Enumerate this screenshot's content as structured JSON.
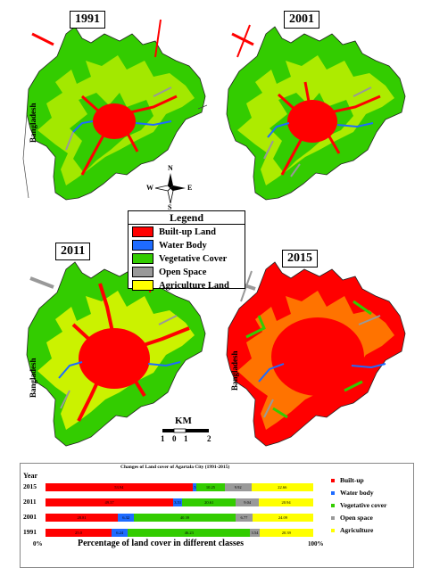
{
  "maps": [
    {
      "year": "1991",
      "country_label": "Bangladesh"
    },
    {
      "year": "2001"
    },
    {
      "year": "2011",
      "country_label": "Bangladesh"
    },
    {
      "year": "2015",
      "country_label": "Bangladesh"
    }
  ],
  "legend": {
    "title": "Legend",
    "items": [
      {
        "label": "Built-up Land",
        "color": "#ff0000"
      },
      {
        "label": "Water Body",
        "color": "#1e6bff"
      },
      {
        "label": "Vegetative Cover",
        "color": "#33cc00"
      },
      {
        "label": "Open Space",
        "color": "#999999"
      },
      {
        "label": "Agriculture Land",
        "color": "#ffff00"
      }
    ]
  },
  "compass": {
    "n": "N",
    "s": "S",
    "e": "E",
    "w": "W"
  },
  "scale_bar": {
    "unit": "KM",
    "ticks": [
      "1",
      "0",
      "1",
      "2"
    ]
  },
  "chart_data": {
    "type": "bar",
    "title": "Changes of Land cover of Agartala City (1991-2015)",
    "year_header": "Year",
    "xlabel": "Percentage of land cover in different classes",
    "x_min_label": "0%",
    "x_max_label": "100%",
    "categories": [
      "2015",
      "2011",
      "2001",
      "1991"
    ],
    "series": [
      {
        "name": "Built-up",
        "color": "#ff0000",
        "values": [
          53.94,
          49.37,
          28.81,
          25.0
        ],
        "labels": [
          "53.94",
          "49.37",
          "28.81",
          "25.0"
        ]
      },
      {
        "name": "Water body",
        "color": "#1e6bff",
        "values": [
          1.51,
          3.51,
          6.32,
          6.24
        ],
        "labels": [
          "1.51",
          "3.51",
          "6.32",
          "6.24"
        ]
      },
      {
        "name": "Vegetative cover",
        "color": "#33cc00",
        "values": [
          10.25,
          20.61,
          40.39,
          46.23
        ],
        "labels": [
          "10.25",
          "20.61",
          "40.39",
          "46.23"
        ]
      },
      {
        "name": "Open space",
        "color": "#999999",
        "values": [
          9.92,
          9.04,
          6.77,
          3.54
        ],
        "labels": [
          "9.92",
          "9.04",
          "6.77",
          "3.54"
        ]
      },
      {
        "name": "Agriculture",
        "color": "#ffff00",
        "values": [
          22.66,
          20.94,
          24.09,
          20.39
        ],
        "labels": [
          "22.66",
          "20.94",
          "24.09",
          "20.39"
        ]
      }
    ]
  }
}
